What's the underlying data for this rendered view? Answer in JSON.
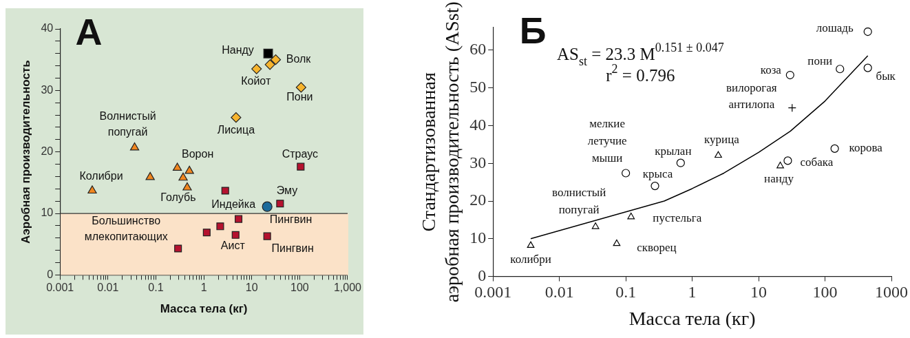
{
  "chart_data": [
    {
      "type": "scatter",
      "xlabel": "Масса тела (кг)",
      "ylabel": "Аэробная производительность",
      "log": "x",
      "xlim": [
        0.001,
        1000
      ],
      "ylim": [
        0,
        40
      ],
      "xticks": [
        0.001,
        {
          "value": 0.002,
          "label": null
        },
        {
          "value": 0.003,
          "label": null
        },
        {
          "value": 0.004,
          "label": null
        },
        {
          "value": 0.005,
          "label": null
        },
        {
          "value": 0.006,
          "label": null
        },
        {
          "value": 0.007,
          "label": null
        },
        {
          "value": 0.008,
          "label": null
        },
        {
          "value": 0.009,
          "label": null
        },
        0.01,
        {
          "value": 0.02,
          "label": null
        },
        {
          "value": 0.03,
          "label": null
        },
        {
          "value": 0.04,
          "label": null
        },
        {
          "value": 0.05,
          "label": null
        },
        {
          "value": 0.06,
          "label": null
        },
        {
          "value": 0.07,
          "label": null
        },
        {
          "value": 0.08,
          "label": null
        },
        {
          "value": 0.09,
          "label": null
        },
        0.1,
        {
          "value": 0.2,
          "label": null
        },
        {
          "value": 0.3,
          "label": null
        },
        {
          "value": 0.4,
          "label": null
        },
        {
          "value": 0.5,
          "label": null
        },
        {
          "value": 0.6,
          "label": null
        },
        {
          "value": 0.7,
          "label": null
        },
        {
          "value": 0.8,
          "label": null
        },
        {
          "value": 0.9,
          "label": null
        },
        1,
        {
          "value": 2,
          "label": null
        },
        {
          "value": 3,
          "label": null
        },
        {
          "value": 4,
          "label": null
        },
        {
          "value": 5,
          "label": null
        },
        {
          "value": 6,
          "label": null
        },
        {
          "value": 7,
          "label": null
        },
        {
          "value": 8,
          "label": null
        },
        {
          "value": 9,
          "label": null
        },
        10,
        {
          "value": 20,
          "label": null
        },
        {
          "value": 30,
          "label": null
        },
        {
          "value": 40,
          "label": null
        },
        {
          "value": 50,
          "label": null
        },
        {
          "value": 60,
          "label": null
        },
        {
          "value": 70,
          "label": null
        },
        {
          "value": 80,
          "label": null
        },
        {
          "value": 90,
          "label": null
        },
        100,
        {
          "value": 200,
          "label": null
        },
        {
          "value": 300,
          "label": null
        },
        {
          "value": 400,
          "label": null
        },
        {
          "value": 500,
          "label": null
        },
        {
          "value": 600,
          "label": null
        },
        {
          "value": 700,
          "label": null
        },
        {
          "value": 800,
          "label": null
        },
        {
          "value": 900,
          "label": null
        },
        {
          "value": 1000,
          "label": "1,000"
        }
      ],
      "yticks": [
        0,
        {
          "value": 2,
          "label": null
        },
        {
          "value": 4,
          "label": null
        },
        {
          "value": 6,
          "label": null
        },
        {
          "value": 8,
          "label": null
        },
        10,
        {
          "value": 12,
          "label": null
        },
        {
          "value": 14,
          "label": null
        },
        {
          "value": 16,
          "label": null
        },
        {
          "value": 18,
          "label": null
        },
        20,
        {
          "value": 22,
          "label": null
        },
        {
          "value": 24,
          "label": null
        },
        {
          "value": 26,
          "label": null
        },
        {
          "value": 28,
          "label": null
        },
        30,
        {
          "value": 32,
          "label": null
        },
        {
          "value": 34,
          "label": null
        },
        {
          "value": 36,
          "label": null
        },
        {
          "value": 38,
          "label": null
        },
        40
      ],
      "bands": [
        {
          "axis": "y",
          "from": 0,
          "to": 10,
          "color": "#fbe2c8",
          "label": "Большинство\nмлекопитающих"
        }
      ],
      "series": [
        {
          "color": "#f0861f",
          "marker": "triangle",
          "x": [
            0.0047,
            0.036,
            0.076,
            0.28,
            0.5,
            0.37,
            0.45
          ],
          "values": [
            13.7,
            20.7,
            15.9,
            17.4,
            16.9,
            15.8,
            14.2
          ]
        },
        {
          "color": "#f6b42e",
          "marker": "diamond",
          "x": [
            12.6,
            24,
            31.6,
            107,
            4.7
          ],
          "values": [
            33.5,
            34.2,
            35.0,
            30.5,
            25.6
          ]
        },
        {
          "color": "#000000",
          "marker": "square",
          "x": [
            22
          ],
          "values": [
            36.0
          ]
        },
        {
          "color": "#b5122f",
          "marker": "square",
          "x": [
            105,
            2.8,
            39,
            5.3,
            2.2,
            1.15,
            4.6,
            21,
            0.29
          ],
          "values": [
            17.6,
            13.7,
            11.6,
            9.1,
            7.9,
            6.9,
            6.5,
            6.3,
            4.3
          ]
        },
        {
          "color": "#1c6b9b",
          "marker": "circle",
          "x": [
            21
          ],
          "values": [
            11.1
          ]
        }
      ],
      "annotations": [
        "А",
        {
          "text": "Нанду",
          "x": 22,
          "y": 36.0
        },
        {
          "text": "Волк",
          "x": 31.6,
          "y": 35.0
        },
        {
          "text": "Койот",
          "x": 12.6,
          "y": 33.5
        },
        {
          "text": "Пони",
          "x": 107,
          "y": 30.5
        },
        {
          "text": "Лисица",
          "x": 4.7,
          "y": 25.6
        },
        {
          "text": "Волнистый\nпопугай",
          "x": 0.036,
          "y": 20.7
        },
        {
          "text": "Ворон",
          "x": 0.5,
          "y": 16.9
        },
        {
          "text": "Колибри",
          "x": 0.0047,
          "y": 13.7
        },
        {
          "text": "Голубь",
          "x": 0.45,
          "y": 14.2
        },
        {
          "text": "Страус",
          "x": 105,
          "y": 17.6
        },
        {
          "text": "Эму",
          "x": 39,
          "y": 11.6
        },
        {
          "text": "Индейка",
          "x": 21,
          "y": 11.1
        },
        {
          "text": "Пингвин",
          "x": 5.3,
          "y": 9.1
        },
        {
          "text": "Аист",
          "x": 4.6,
          "y": 6.5
        },
        {
          "text": "Пингвин",
          "x": 21,
          "y": 6.3
        }
      ]
    },
    {
      "type": "scatter",
      "xlabel": "Масса тела (кг)",
      "ylabel": "Стандартизованная\nаэробная производительность (ASst)",
      "log": "x",
      "xlim": [
        0.001,
        1000
      ],
      "ylim": [
        0,
        66
      ],
      "xticks": [
        0.001,
        0.01,
        0.1,
        1,
        10,
        100,
        1000
      ],
      "yticks": [
        0,
        10,
        20,
        30,
        40,
        50,
        60
      ],
      "series": [
        {
          "color": "#000000",
          "marker": "circle",
          "x": [
            441,
            441,
            168,
            29.8,
            140,
            27.5,
            0.67,
            0.1,
            0.275
          ],
          "values": [
            64.9,
            55.3,
            55.0,
            53.4,
            33.9,
            30.7,
            30.1,
            27.4,
            24.0
          ]
        },
        {
          "color": "#000000",
          "marker": "cross",
          "x": [
            32
          ],
          "values": [
            44.7
          ]
        },
        {
          "color": "#000000",
          "marker": "triangle",
          "x": [
            2.47,
            21.2,
            0.12,
            0.035,
            0.073,
            0.0037
          ],
          "values": [
            32.1,
            29.3,
            15.8,
            13.2,
            8.7,
            8.2
          ]
        },
        {
          "type": "line",
          "color": "#000000",
          "marker": "none",
          "line_style": "solid",
          "x": [
            0.0037,
            0.38,
            1,
            3,
            10,
            30,
            100,
            441
          ],
          "values": [
            10.0,
            20.0,
            23.3,
            27.4,
            32.9,
            38.5,
            46.5,
            58.5
          ]
        }
      ],
      "annotations": [
        "Б",
        "AS$_{st}$ = 23.3 M$^{0.151 ± 0.047}$",
        "r$^{2}$ = 0.796",
        {
          "text": "лошадь",
          "x": 441,
          "y": 64.9
        },
        {
          "text": "пони",
          "x": 168,
          "y": 55.0
        },
        {
          "text": "бык",
          "x": 441,
          "y": 55.3
        },
        {
          "text": "коза",
          "x": 29.8,
          "y": 53.4
        },
        {
          "text": "вилорогая\nантилопа",
          "x": 32,
          "y": 44.7
        },
        {
          "text": "мелкие\nлетучие\nмыши",
          "x": 0.1,
          "y": 27.4
        },
        {
          "text": "крылан",
          "x": 0.67,
          "y": 30.1
        },
        {
          "text": "курица",
          "x": 2.47,
          "y": 32.1
        },
        {
          "text": "крыса",
          "x": 0.275,
          "y": 24.0
        },
        {
          "text": "собака",
          "x": 27.5,
          "y": 30.7
        },
        {
          "text": "корова",
          "x": 140,
          "y": 33.9
        },
        {
          "text": "нанду",
          "x": 21.2,
          "y": 29.3
        },
        {
          "text": "волнистый\nпопугай",
          "x": 0.035,
          "y": 13.2
        },
        {
          "text": "пустельга",
          "x": 0.12,
          "y": 15.8
        },
        {
          "text": "скворец",
          "x": 0.073,
          "y": 8.7
        },
        {
          "text": "колибри",
          "x": 0.0037,
          "y": 8.2
        }
      ]
    }
  ]
}
